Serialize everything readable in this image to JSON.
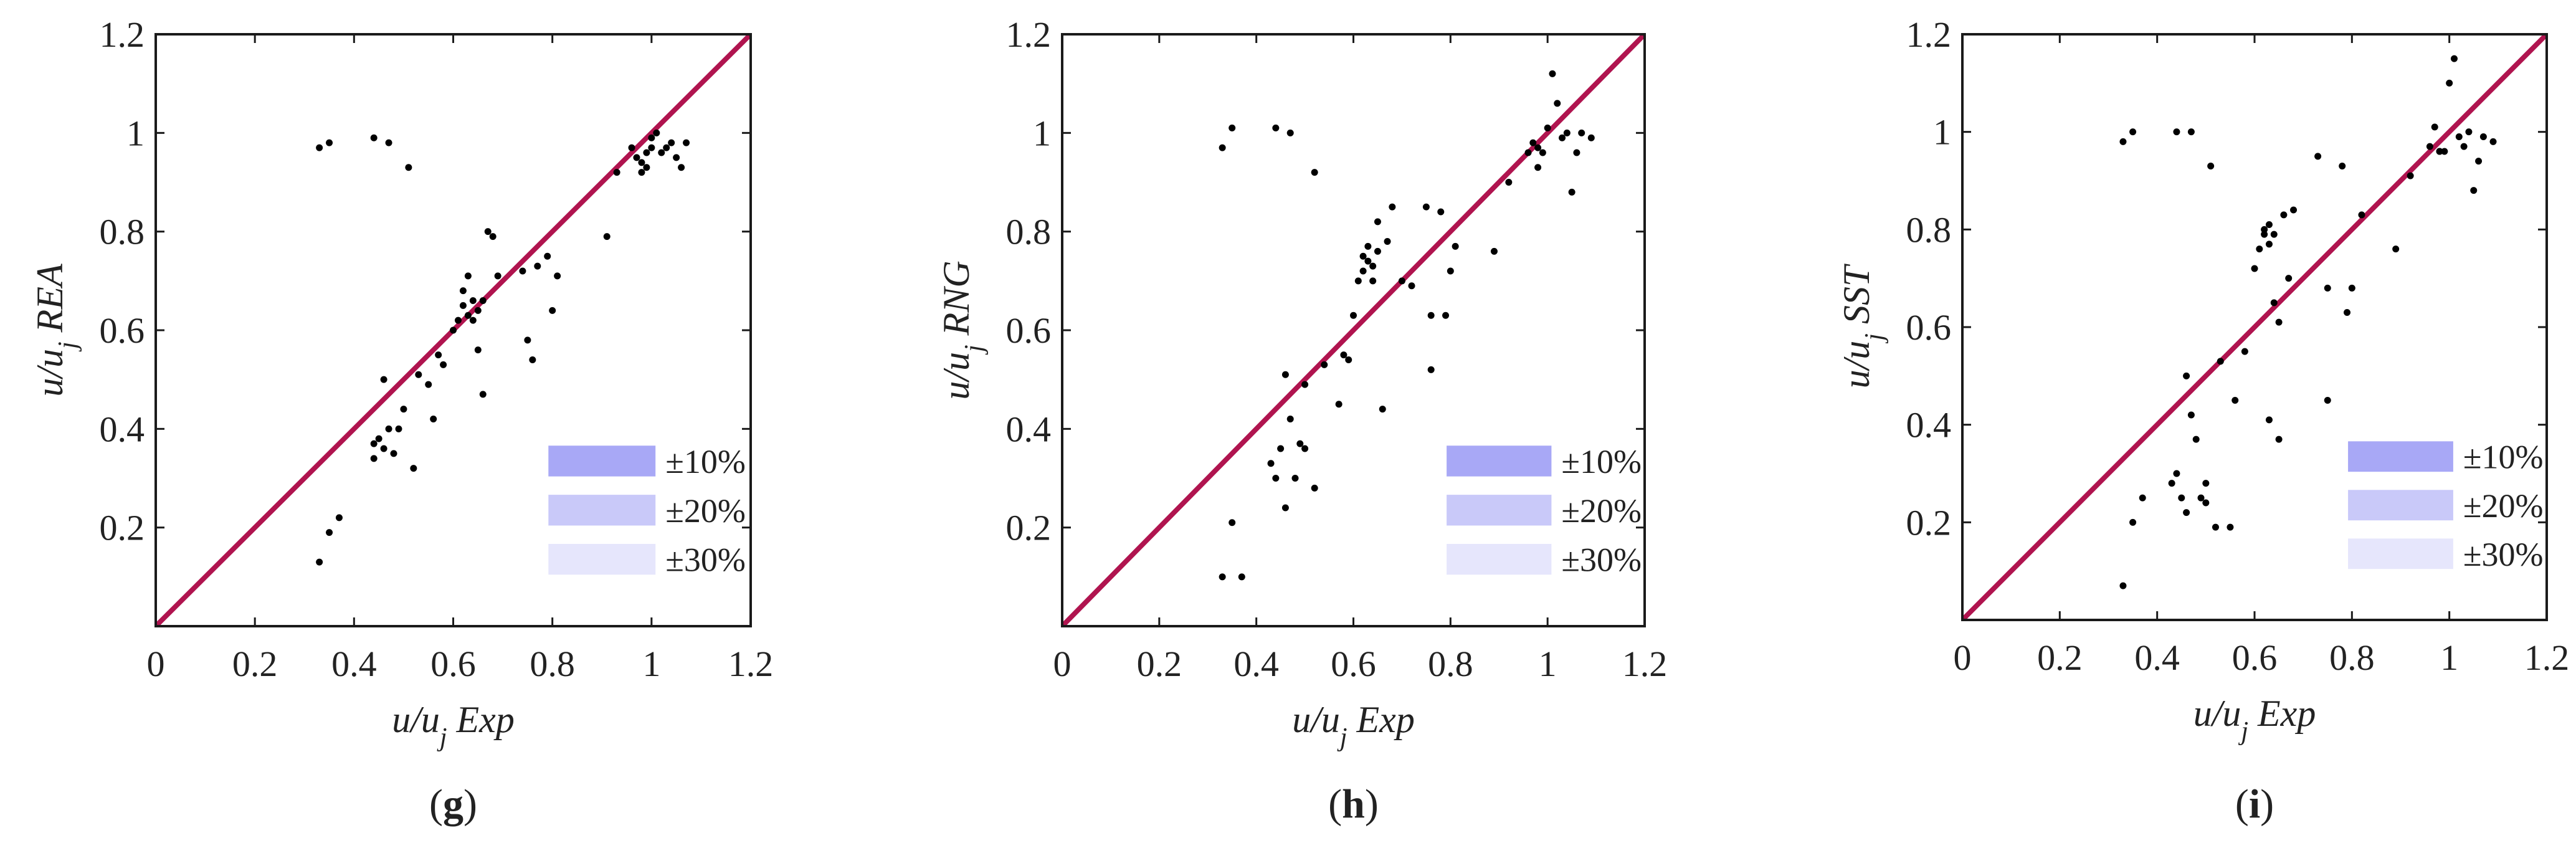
{
  "figure": {
    "band_colors": {
      "10": "#a8a8f6",
      "20": "#c9c9f9",
      "30": "#e6e6fc"
    },
    "line_color": "#b0144f",
    "point_color": "#000000"
  },
  "chart_data": [
    {
      "type": "scatter",
      "panel": "(g)",
      "panel_open": "(",
      "panel_letter": "g",
      "panel_close": ")",
      "xlabel": "u/u",
      "xlabel_sub": "j",
      "xlabel_tail": " Exp",
      "ylabel": "u/u",
      "ylabel_sub": "j",
      "ylabel_tail": " REA",
      "xlim": [
        0,
        1.2
      ],
      "ylim": [
        0,
        1.2
      ],
      "xticks": [
        0,
        0.2,
        0.4,
        0.6,
        0.8,
        1,
        1.2
      ],
      "xtick_labels": [
        "0",
        "0.2",
        "0.4",
        "0.6",
        "0.8",
        "1",
        "1.2"
      ],
      "yticks": [
        0.2,
        0.4,
        0.6,
        0.8,
        1,
        1.2
      ],
      "ytick_labels": [
        "0.2",
        "0.4",
        "0.6",
        "0.8",
        "1",
        "1.2"
      ],
      "reference_line": "y = x",
      "bands": [
        {
          "label": "±10%",
          "tolerance": 0.1
        },
        {
          "label": "±20%",
          "tolerance": 0.2
        },
        {
          "label": "±30%",
          "tolerance": 0.3
        }
      ],
      "legend_position": "bottom-right",
      "points": [
        [
          0.33,
          0.97
        ],
        [
          0.35,
          0.98
        ],
        [
          0.44,
          0.99
        ],
        [
          0.47,
          0.98
        ],
        [
          0.51,
          0.93
        ],
        [
          0.33,
          0.13
        ],
        [
          0.35,
          0.19
        ],
        [
          0.37,
          0.22
        ],
        [
          0.44,
          0.34
        ],
        [
          0.45,
          0.38
        ],
        [
          0.44,
          0.37
        ],
        [
          0.46,
          0.36
        ],
        [
          0.47,
          0.4
        ],
        [
          0.48,
          0.35
        ],
        [
          0.46,
          0.5
        ],
        [
          0.49,
          0.4
        ],
        [
          0.5,
          0.44
        ],
        [
          0.52,
          0.32
        ],
        [
          0.53,
          0.51
        ],
        [
          0.55,
          0.49
        ],
        [
          0.56,
          0.42
        ],
        [
          0.57,
          0.55
        ],
        [
          0.58,
          0.53
        ],
        [
          0.6,
          0.6
        ],
        [
          0.61,
          0.62
        ],
        [
          0.62,
          0.65
        ],
        [
          0.62,
          0.68
        ],
        [
          0.63,
          0.71
        ],
        [
          0.63,
          0.63
        ],
        [
          0.64,
          0.66
        ],
        [
          0.64,
          0.62
        ],
        [
          0.65,
          0.64
        ],
        [
          0.66,
          0.66
        ],
        [
          0.65,
          0.56
        ],
        [
          0.66,
          0.47
        ],
        [
          0.67,
          0.8
        ],
        [
          0.68,
          0.79
        ],
        [
          0.69,
          0.71
        ],
        [
          0.74,
          0.72
        ],
        [
          0.75,
          0.58
        ],
        [
          0.76,
          0.54
        ],
        [
          0.77,
          0.73
        ],
        [
          0.79,
          0.75
        ],
        [
          0.8,
          0.64
        ],
        [
          0.81,
          0.71
        ],
        [
          0.91,
          0.79
        ],
        [
          0.93,
          0.92
        ],
        [
          0.96,
          0.97
        ],
        [
          0.97,
          0.95
        ],
        [
          0.98,
          0.94
        ],
        [
          0.98,
          0.92
        ],
        [
          0.99,
          0.96
        ],
        [
          1.0,
          0.99
        ],
        [
          1.01,
          1.0
        ],
        [
          1.02,
          0.96
        ],
        [
          1.03,
          0.97
        ],
        [
          1.04,
          0.98
        ],
        [
          1.05,
          0.95
        ],
        [
          1.06,
          0.93
        ],
        [
          1.07,
          0.98
        ],
        [
          1.0,
          0.97
        ],
        [
          0.99,
          0.93
        ]
      ]
    },
    {
      "type": "scatter",
      "panel": "(h)",
      "panel_open": "(",
      "panel_letter": "h",
      "panel_close": ")",
      "xlabel": "u/u",
      "xlabel_sub": "j",
      "xlabel_tail": "  Exp",
      "ylabel": "u/u",
      "ylabel_sub": "j",
      "ylabel_tail": " RNG",
      "xlim": [
        0,
        1.2
      ],
      "ylim": [
        0,
        1.2
      ],
      "xticks": [
        0,
        0.2,
        0.4,
        0.6,
        0.8,
        1,
        1.2
      ],
      "xtick_labels": [
        "0",
        "0.2",
        "0.4",
        "0.6",
        "0.8",
        "1",
        "1.2"
      ],
      "yticks": [
        0.2,
        0.4,
        0.6,
        0.8,
        1,
        1.2
      ],
      "ytick_labels": [
        "0.2",
        "0.4",
        "0.6",
        "0.8",
        "1",
        "1.2"
      ],
      "reference_line": "y = x",
      "bands": [
        {
          "label": "±10%",
          "tolerance": 0.1
        },
        {
          "label": "±20%",
          "tolerance": 0.2
        },
        {
          "label": "±30%",
          "tolerance": 0.3
        }
      ],
      "legend_position": "bottom-right",
      "points": [
        [
          0.33,
          0.97
        ],
        [
          0.35,
          1.01
        ],
        [
          0.44,
          1.01
        ],
        [
          0.47,
          1.0
        ],
        [
          0.52,
          0.92
        ],
        [
          0.33,
          0.1
        ],
        [
          0.37,
          0.1
        ],
        [
          0.35,
          0.21
        ],
        [
          0.46,
          0.24
        ],
        [
          0.48,
          0.3
        ],
        [
          0.43,
          0.33
        ],
        [
          0.44,
          0.3
        ],
        [
          0.45,
          0.36
        ],
        [
          0.46,
          0.51
        ],
        [
          0.47,
          0.42
        ],
        [
          0.49,
          0.37
        ],
        [
          0.5,
          0.36
        ],
        [
          0.5,
          0.49
        ],
        [
          0.52,
          0.28
        ],
        [
          0.54,
          0.53
        ],
        [
          0.57,
          0.45
        ],
        [
          0.58,
          0.55
        ],
        [
          0.59,
          0.54
        ],
        [
          0.6,
          0.63
        ],
        [
          0.61,
          0.7
        ],
        [
          0.62,
          0.72
        ],
        [
          0.62,
          0.75
        ],
        [
          0.63,
          0.74
        ],
        [
          0.63,
          0.77
        ],
        [
          0.64,
          0.73
        ],
        [
          0.64,
          0.7
        ],
        [
          0.65,
          0.76
        ],
        [
          0.65,
          0.82
        ],
        [
          0.66,
          0.44
        ],
        [
          0.67,
          0.78
        ],
        [
          0.68,
          0.85
        ],
        [
          0.7,
          0.7
        ],
        [
          0.72,
          0.69
        ],
        [
          0.75,
          0.85
        ],
        [
          0.76,
          0.63
        ],
        [
          0.76,
          0.52
        ],
        [
          0.78,
          0.84
        ],
        [
          0.79,
          0.63
        ],
        [
          0.8,
          0.72
        ],
        [
          0.81,
          0.77
        ],
        [
          0.89,
          0.76
        ],
        [
          0.92,
          0.9
        ],
        [
          0.96,
          0.96
        ],
        [
          0.97,
          0.98
        ],
        [
          0.98,
          0.97
        ],
        [
          0.98,
          0.93
        ],
        [
          0.99,
          0.96
        ],
        [
          1.0,
          1.01
        ],
        [
          1.01,
          1.12
        ],
        [
          1.02,
          1.06
        ],
        [
          1.03,
          0.99
        ],
        [
          1.04,
          1.0
        ],
        [
          1.05,
          0.88
        ],
        [
          1.06,
          0.96
        ],
        [
          1.07,
          1.0
        ],
        [
          1.09,
          0.99
        ]
      ]
    },
    {
      "type": "scatter",
      "panel": "(i)",
      "panel_open": "(",
      "panel_letter": "i",
      "panel_close": ")",
      "xlabel": "u/u",
      "xlabel_sub": "j",
      "xlabel_tail": "  Exp",
      "ylabel": "u/u",
      "ylabel_sub": "j",
      "ylabel_tail": "  SST",
      "xlim": [
        0,
        1.2
      ],
      "ylim": [
        0,
        1.2
      ],
      "xticks": [
        0,
        0.2,
        0.4,
        0.6,
        0.8,
        1,
        1.2
      ],
      "xtick_labels": [
        "0",
        "0.2",
        "0.4",
        "0.6",
        "0.8",
        "1",
        "1.2"
      ],
      "yticks": [
        0.2,
        0.4,
        0.6,
        0.8,
        1,
        1.2
      ],
      "ytick_labels": [
        "0.2",
        "0.4",
        "0.6",
        "0.8",
        "1",
        "1.2"
      ],
      "reference_line": "y = x",
      "bands": [
        {
          "label": "±10%",
          "tolerance": 0.1
        },
        {
          "label": "±20%",
          "tolerance": 0.2
        },
        {
          "label": "±30%",
          "tolerance": 0.3
        }
      ],
      "legend_position": "bottom-right",
      "points": [
        [
          0.33,
          0.98
        ],
        [
          0.35,
          1.0
        ],
        [
          0.44,
          1.0
        ],
        [
          0.47,
          1.0
        ],
        [
          0.51,
          0.93
        ],
        [
          0.33,
          0.07
        ],
        [
          0.35,
          0.2
        ],
        [
          0.37,
          0.25
        ],
        [
          0.43,
          0.28
        ],
        [
          0.44,
          0.3
        ],
        [
          0.45,
          0.25
        ],
        [
          0.46,
          0.22
        ],
        [
          0.46,
          0.5
        ],
        [
          0.47,
          0.42
        ],
        [
          0.48,
          0.37
        ],
        [
          0.49,
          0.25
        ],
        [
          0.5,
          0.28
        ],
        [
          0.5,
          0.24
        ],
        [
          0.52,
          0.19
        ],
        [
          0.53,
          0.53
        ],
        [
          0.55,
          0.19
        ],
        [
          0.56,
          0.45
        ],
        [
          0.58,
          0.55
        ],
        [
          0.6,
          0.72
        ],
        [
          0.61,
          0.76
        ],
        [
          0.62,
          0.79
        ],
        [
          0.62,
          0.8
        ],
        [
          0.63,
          0.77
        ],
        [
          0.63,
          0.81
        ],
        [
          0.64,
          0.79
        ],
        [
          0.64,
          0.65
        ],
        [
          0.65,
          0.61
        ],
        [
          0.65,
          0.37
        ],
        [
          0.66,
          0.83
        ],
        [
          0.67,
          0.7
        ],
        [
          0.68,
          0.84
        ],
        [
          0.73,
          0.95
        ],
        [
          0.75,
          0.45
        ],
        [
          0.75,
          0.68
        ],
        [
          0.78,
          0.93
        ],
        [
          0.79,
          0.63
        ],
        [
          0.8,
          0.68
        ],
        [
          0.82,
          0.83
        ],
        [
          0.89,
          0.76
        ],
        [
          0.92,
          0.91
        ],
        [
          0.96,
          0.97
        ],
        [
          0.97,
          1.01
        ],
        [
          0.98,
          0.96
        ],
        [
          0.98,
          0.96
        ],
        [
          0.99,
          0.96
        ],
        [
          1.0,
          1.1
        ],
        [
          1.01,
          1.15
        ],
        [
          1.02,
          0.99
        ],
        [
          1.03,
          0.97
        ],
        [
          1.04,
          1.0
        ],
        [
          1.05,
          0.88
        ],
        [
          1.06,
          0.94
        ],
        [
          1.07,
          0.99
        ],
        [
          1.09,
          0.98
        ],
        [
          0.63,
          0.41
        ]
      ]
    }
  ]
}
